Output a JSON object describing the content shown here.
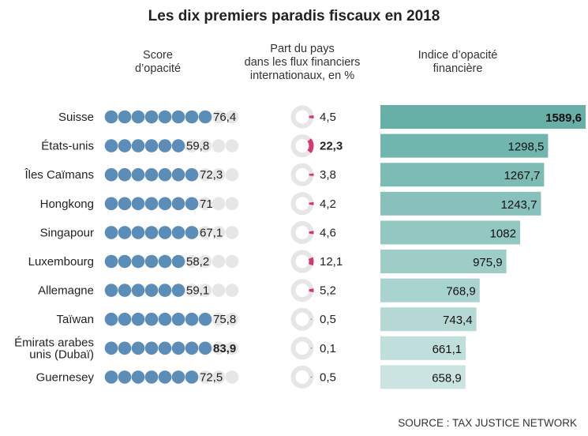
{
  "chart_data": {
    "type": "table",
    "title": "Les dix premiers paradis fiscaux en 2018",
    "columns": [
      "Score d’opacité",
      "Part du pays dans les flux financiers internationaux, en %",
      "Indice d’opacité financière"
    ],
    "column_lines": {
      "score": [
        "Score",
        "d’opacité"
      ],
      "share": [
        "Part du pays",
        "dans les flux financiers",
        "internationaux, en %"
      ],
      "index": [
        "Indice d’opacité",
        "financière"
      ]
    },
    "categories": [
      "Suisse",
      "États-unis",
      "Îles Caïmans",
      "Hongkong",
      "Singapour",
      "Luxembourg",
      "Allemagne",
      "Taïwan",
      "Émirats arabes unis (Dubaï)",
      "Guernesey"
    ],
    "category_lines": [
      [
        "Suisse"
      ],
      [
        "États-unis"
      ],
      [
        "Îles Caïmans"
      ],
      [
        "Hongkong"
      ],
      [
        "Singapour"
      ],
      [
        "Luxembourg"
      ],
      [
        "Allemagne"
      ],
      [
        "Taïwan"
      ],
      [
        "Émirats arabes",
        "unis (Dubaï)"
      ],
      [
        "Guernesey"
      ]
    ],
    "score": [
      76.4,
      59.8,
      72.3,
      71,
      67.1,
      58.2,
      59.1,
      75.8,
      83.9,
      72.5
    ],
    "score_labels": [
      "76,4",
      "59,8",
      "72,3",
      "71",
      "67,1",
      "58,2",
      "59,1",
      "75,8",
      "83,9",
      "72,5"
    ],
    "share": [
      4.5,
      22.3,
      3.8,
      4.2,
      4.6,
      12.1,
      5.2,
      0.5,
      0.1,
      0.5
    ],
    "share_labels": [
      "4,5",
      "22,3",
      "3,8",
      "4,2",
      "4,6",
      "12,1",
      "5,2",
      "0,5",
      "0,1",
      "0,5"
    ],
    "index": [
      1589.6,
      1298.5,
      1267.7,
      1243.7,
      1082,
      975.9,
      768.9,
      743.4,
      661.1,
      658.9
    ],
    "index_labels": [
      "1589,6",
      "1298,5",
      "1267,7",
      "1243,7",
      "1082",
      "975,9",
      "768,9",
      "743,4",
      "661,1",
      "658,9"
    ],
    "score_max": 100,
    "share_max": 100,
    "highlighted": {
      "score": 8,
      "share": 1,
      "index": 0
    },
    "colors": {
      "dot": "#5b8db8",
      "dot_empty": "#e6e6e6",
      "ring": "#e6e6e6",
      "arc": "#d6386a",
      "bar_dark": "#66b0a8",
      "bar_light": "#cbe4e1"
    }
  },
  "source": "SOURCE : TAX JUSTICE NETWORK"
}
